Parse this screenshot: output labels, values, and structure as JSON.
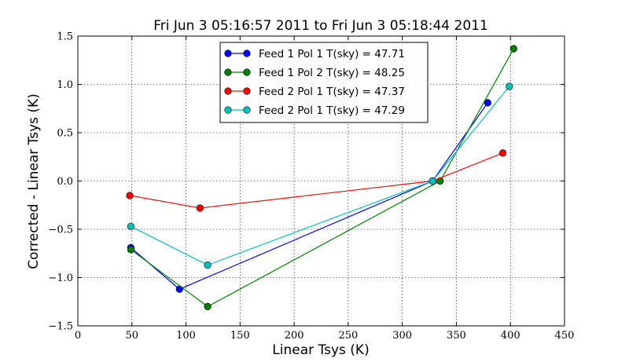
{
  "chart_data": {
    "type": "line",
    "title": "Fri Jun 3 05:16:57 2011 to Fri Jun 3 05:18:44 2011",
    "xlabel": "Linear Tsys (K)",
    "ylabel": "Corrected - Linear Tsys (K)",
    "xlim": [
      0,
      450
    ],
    "ylim": [
      -1.5,
      1.5
    ],
    "xticks": [
      0,
      50,
      100,
      150,
      200,
      250,
      300,
      350,
      400,
      450
    ],
    "yticks": [
      -1.5,
      -1.0,
      -0.5,
      0.0,
      0.5,
      1.0,
      1.5
    ],
    "xtick_labels": [
      "0",
      "50",
      "100",
      "150",
      "200",
      "250",
      "300",
      "350",
      "400",
      "450"
    ],
    "ytick_labels": [
      "−1.5",
      "−1.0",
      "−0.5",
      "0.0",
      "0.5",
      "1.0",
      "1.5"
    ],
    "grid": true,
    "legend_position": "top-center",
    "series": [
      {
        "name": "Feed 1 Pol 1 T(sky) = 47.71",
        "color": "#0000ff",
        "points": [
          [
            49,
            -0.69
          ],
          [
            94,
            -1.12
          ],
          [
            328,
            0.0
          ],
          [
            379,
            0.81
          ]
        ]
      },
      {
        "name": "Feed 1 Pol 2 T(sky) = 48.25",
        "color": "#008000",
        "points": [
          [
            49,
            -0.71
          ],
          [
            120,
            -1.3
          ],
          [
            335,
            0.0
          ],
          [
            403,
            1.37
          ]
        ]
      },
      {
        "name": "Feed 2 Pol 1 T(sky) = 47.37",
        "color": "#ff0000",
        "points": [
          [
            48,
            -0.15
          ],
          [
            113,
            -0.28
          ],
          [
            328,
            0.0
          ],
          [
            393,
            0.29
          ]
        ]
      },
      {
        "name": "Feed 2 Pol 1 T(sky) = 47.29",
        "color": "#00bfbf",
        "points": [
          [
            49,
            -0.47
          ],
          [
            120,
            -0.87
          ],
          [
            328,
            0.0
          ],
          [
            399,
            0.98
          ]
        ]
      }
    ]
  }
}
